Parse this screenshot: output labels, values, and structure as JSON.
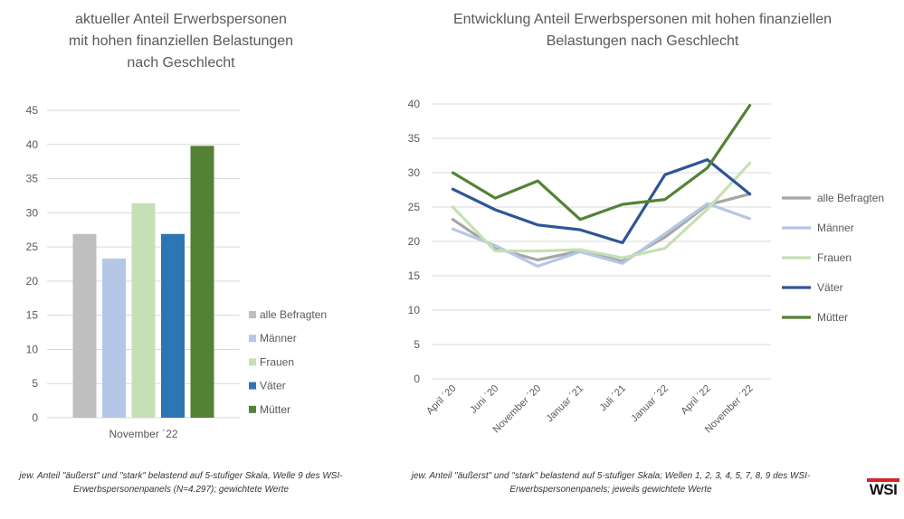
{
  "chart_data": [
    {
      "type": "bar",
      "title_lines": [
        "aktueller Anteil Erwerbspersonen",
        "mit hohen finanziellen Belastungen",
        "nach Geschlecht"
      ],
      "categories": [
        "November ´22"
      ],
      "series": [
        {
          "name": "alle Befragten",
          "values": [
            26.9
          ],
          "color": "#bfbfbf"
        },
        {
          "name": "Männer",
          "values": [
            23.3
          ],
          "color": "#b4c7e7"
        },
        {
          "name": "Frauen",
          "values": [
            31.4
          ],
          "color": "#c5e0b4"
        },
        {
          "name": "Väter",
          "values": [
            26.9
          ],
          "color": "#2e75b6"
        },
        {
          "name": "Mütter",
          "values": [
            39.8
          ],
          "color": "#548235"
        }
      ],
      "ylim": [
        0,
        45
      ],
      "yticks": [
        "0",
        "5",
        "10",
        "15",
        "20",
        "25",
        "30",
        "35",
        "40",
        "45"
      ],
      "grid": true,
      "legend_position": "right"
    },
    {
      "type": "line",
      "title_lines": [
        "Entwicklung Anteil Erwerbspersonen mit hohen finanziellen",
        "Belastungen nach Geschlecht"
      ],
      "x": [
        "April ´20",
        "Juni ´20",
        "November ´20",
        "Januar ´21",
        "Juli ´21",
        "Januar ´22",
        "April ´22",
        "November ´22"
      ],
      "series": [
        {
          "name": "alle Befragten",
          "values": [
            23.2,
            19.0,
            17.3,
            18.6,
            17.1,
            20.6,
            25.3,
            26.9
          ],
          "color": "#a6a6a6"
        },
        {
          "name": "Männer",
          "values": [
            21.8,
            19.4,
            16.4,
            18.5,
            16.8,
            21.1,
            25.5,
            23.3
          ],
          "color": "#b4c7e7"
        },
        {
          "name": "Frauen",
          "values": [
            25.0,
            18.6,
            18.6,
            18.8,
            17.6,
            19.0,
            24.7,
            31.4
          ],
          "color": "#c5e0b4"
        },
        {
          "name": "Väter",
          "values": [
            27.6,
            24.6,
            22.4,
            21.7,
            19.8,
            29.7,
            31.9,
            26.9
          ],
          "color": "#2f5597"
        },
        {
          "name": "Mütter",
          "values": [
            30.0,
            26.3,
            28.8,
            23.2,
            25.4,
            26.1,
            30.7,
            39.8
          ],
          "color": "#548235"
        }
      ],
      "ylim": [
        0,
        40
      ],
      "yticks": [
        "0",
        "5",
        "10",
        "15",
        "20",
        "25",
        "30",
        "35",
        "40"
      ],
      "grid": true,
      "legend_position": "right"
    }
  ],
  "footnotes": {
    "left": "jew. Anteil \"äußerst\" und \"stark\" belastend auf 5-stufiger Skala, Welle 9 des WSI-Erwerbspersonenpanels (N=4.297); gewichtete Werte",
    "right": "jew. Anteil \"äußerst\" und \"stark\" belastend auf 5-stufiger Skala; Wellen 1, 2, 3, 4, 5, 7, 8, 9 des WSI-Erwerbspersonenpanels;  jeweils gewichtete Werte"
  },
  "logo": {
    "text": "WSI",
    "accent": "#d7242a"
  }
}
